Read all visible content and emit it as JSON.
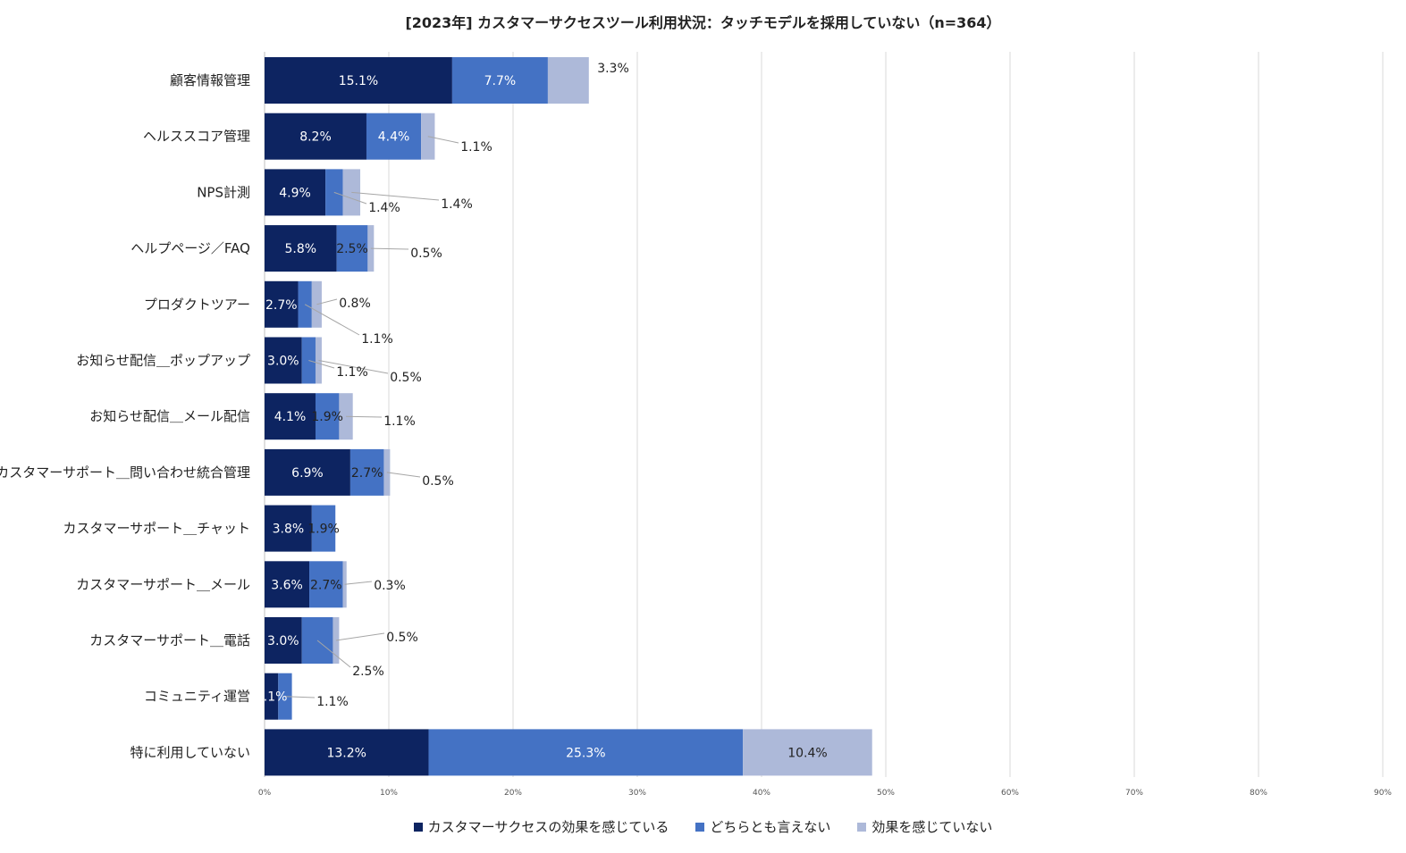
{
  "chart_data": {
    "type": "bar",
    "orientation": "horizontal",
    "stacked": true,
    "title": "[2023年] カスタマーサクセスツール利用状況：タッチモデルを採用していない（n=364）",
    "xlabel": "",
    "ylabel": "",
    "xlim": [
      0,
      90
    ],
    "xticks": [
      "0%",
      "10%",
      "20%",
      "30%",
      "40%",
      "50%",
      "60%",
      "70%",
      "80%",
      "90%"
    ],
    "grid": true,
    "legend_position": "bottom",
    "categories": [
      "顧客情報管理",
      "ヘルススコア管理",
      "NPS計測",
      "ヘルプページ／FAQ",
      "プロダクトツアー",
      "お知らせ配信＿ポップアップ",
      "お知らせ配信＿メール配信",
      "カスタマーサポート＿問い合わせ統合管理",
      "カスタマーサポート＿チャット",
      "カスタマーサポート＿メール",
      "カスタマーサポート＿電話",
      "コミュニティ運営",
      "特に利用していない"
    ],
    "series": [
      {
        "name": "カスタマーサクセスの効果を感じている",
        "color": "#0d2461",
        "values": [
          15.1,
          8.2,
          4.9,
          5.8,
          2.7,
          3.0,
          4.1,
          6.9,
          3.8,
          3.6,
          3.0,
          1.1,
          13.2
        ]
      },
      {
        "name": "どちらとも言えない",
        "color": "#4472c4",
        "values": [
          7.7,
          4.4,
          1.4,
          2.5,
          1.1,
          1.1,
          1.9,
          2.7,
          1.9,
          2.7,
          2.5,
          1.1,
          25.3
        ]
      },
      {
        "name": "効果を感じていない",
        "color": "#adb9d9",
        "values": [
          3.3,
          1.1,
          1.4,
          0.5,
          0.8,
          0.5,
          1.1,
          0.5,
          0.0,
          0.3,
          0.5,
          0.0,
          10.4
        ]
      }
    ],
    "data_labels": [
      [
        "15.1%",
        "7.7%",
        "3.3%"
      ],
      [
        "8.2%",
        "4.4%",
        "1.1%"
      ],
      [
        "4.9%",
        "1.4%",
        "1.4%"
      ],
      [
        "5.8%",
        "2.5%",
        "0.5%"
      ],
      [
        "2.7%",
        "1.1%",
        "0.8%"
      ],
      [
        "3.0%",
        "1.1%",
        "0.5%"
      ],
      [
        "4.1%",
        "1.9%",
        "1.1%"
      ],
      [
        "6.9%",
        "2.7%",
        "0.5%"
      ],
      [
        "3.8%",
        "1.9%",
        ""
      ],
      [
        "3.6%",
        "2.7%",
        "0.3%"
      ],
      [
        "3.0%",
        "2.5%",
        "0.5%"
      ],
      [
        "1.1%",
        "1.1%",
        ""
      ],
      [
        "13.2%",
        "25.3%",
        "10.4%"
      ]
    ]
  }
}
